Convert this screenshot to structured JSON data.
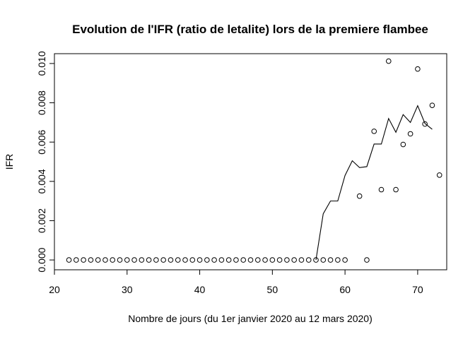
{
  "chart_data": {
    "type": "scatter",
    "title": "Evolution de l'IFR (ratio de letalite) lors de la premiere flambee",
    "xlabel": "Nombre de jours (du 1er janvier 2020 au 12 mars 2020)",
    "ylabel": "IFR",
    "xlim": [
      20,
      74
    ],
    "ylim": [
      -0.0005,
      0.0105
    ],
    "x_ticks": [
      "20",
      "30",
      "40",
      "50",
      "60",
      "70"
    ],
    "y_ticks": [
      "0.000",
      "0.002",
      "0.004",
      "0.006",
      "0.008",
      "0.010"
    ],
    "grid": false,
    "series": [
      {
        "kind": "points",
        "marker": "open-circle",
        "x": [
          22,
          23,
          24,
          25,
          26,
          27,
          28,
          29,
          30,
          31,
          32,
          33,
          34,
          35,
          36,
          37,
          38,
          39,
          40,
          41,
          42,
          43,
          44,
          45,
          46,
          47,
          48,
          49,
          50,
          51,
          52,
          53,
          54,
          55,
          56,
          57,
          58,
          59,
          60,
          62,
          63,
          64,
          65,
          66,
          67,
          68,
          69,
          70,
          71,
          72,
          73
        ],
        "y": [
          0,
          0,
          0,
          0,
          0,
          0,
          0,
          0,
          0,
          0,
          0,
          0,
          0,
          0,
          0,
          0,
          0,
          0,
          0,
          0,
          0,
          0,
          0,
          0,
          0,
          0,
          0,
          0,
          0,
          0,
          0,
          0,
          0,
          0,
          0,
          0,
          0,
          0,
          0,
          0.00325,
          0,
          0.00655,
          0.00358,
          0.01012,
          0.00358,
          0.00588,
          0.00642,
          0.00972,
          0.00692,
          0.00787,
          0.00432
        ]
      },
      {
        "kind": "line",
        "x": [
          56,
          57,
          58,
          59,
          60,
          61,
          62,
          63,
          64,
          65,
          66,
          67,
          68,
          69,
          70,
          71,
          72
        ],
        "y": [
          0,
          0.00235,
          0.003,
          0.003,
          0.0043,
          0.00505,
          0.0047,
          0.00475,
          0.0059,
          0.0059,
          0.0072,
          0.0065,
          0.0074,
          0.007,
          0.00785,
          0.00695,
          0.00665
        ]
      }
    ]
  }
}
